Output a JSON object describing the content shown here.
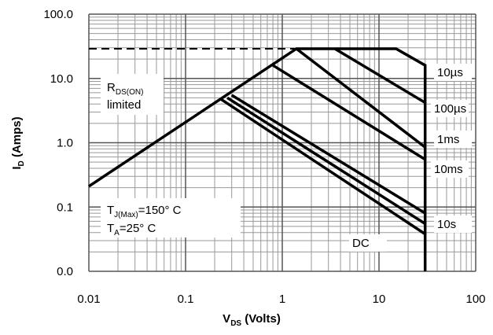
{
  "chart_data": {
    "type": "line",
    "x_label": [
      "V",
      "DS",
      " (Volts)"
    ],
    "y_label": [
      "I",
      "D",
      " (Amps)"
    ],
    "log_x": true,
    "log_y": true,
    "grid": true,
    "line_color": "#000000",
    "xlim": [
      0.01,
      100
    ],
    "xticks": [
      0.01,
      0.1,
      1,
      10,
      100
    ],
    "ylim": [
      0.01,
      100
    ],
    "yticks": [
      {
        "value": 0.01,
        "label": "0.0"
      },
      0.1,
      {
        "value": 1,
        "label": "1.0"
      },
      {
        "value": 10,
        "label": "10.0"
      },
      {
        "value": 100,
        "label": "100.0"
      }
    ],
    "annotations": {
      "rds": [
        "R",
        "DS(ON)",
        "limited"
      ],
      "tj": [
        "T",
        "J(Max)",
        "=150° C"
      ],
      "ta": [
        "T",
        "A",
        "=25° C"
      ]
    },
    "dashed": {
      "x": [
        0.01,
        1.4
      ],
      "values": [
        29,
        29
      ]
    },
    "series": [
      {
        "name": "10µs",
        "x": [
          0.01,
          1.4,
          15,
          30,
          30
        ],
        "values": [
          0.21,
          29,
          29,
          16,
          0.01
        ]
      },
      {
        "name": "100µs",
        "x": [
          3.5,
          30
        ],
        "values": [
          29,
          4.2
        ]
      },
      {
        "name": "1ms",
        "x": [
          1.4,
          30
        ],
        "values": [
          29,
          0.85
        ]
      },
      {
        "name": "10ms",
        "x": [
          0.8,
          30
        ],
        "values": [
          16,
          0.55
        ]
      },
      {
        "x": [
          0.3,
          30
        ],
        "values": [
          5.5,
          0.08
        ]
      },
      {
        "name": "10s",
        "x": [
          0.27,
          30
        ],
        "values": [
          5,
          0.055
        ]
      },
      {
        "name": "DC",
        "x": [
          0.23,
          30
        ],
        "values": [
          4.8,
          0.038
        ]
      }
    ]
  }
}
